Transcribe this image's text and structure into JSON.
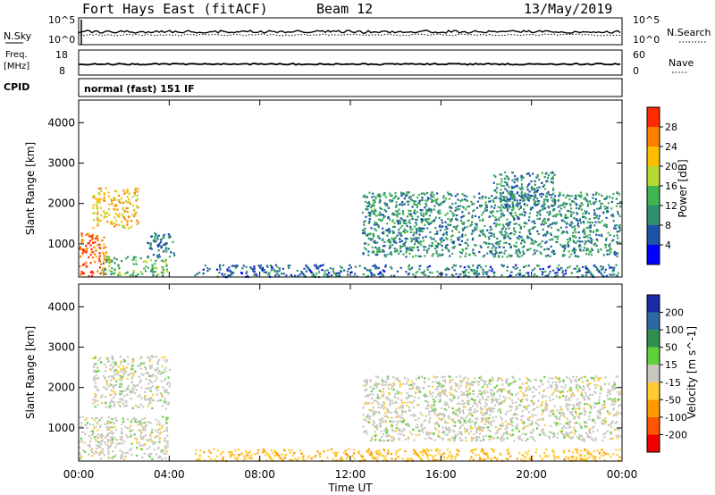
{
  "header": {
    "title": "Fort Hays East (fitACF)",
    "beam": "Beam 12",
    "date": "13/May/2019"
  },
  "top_panels": {
    "nsky_label": "N.Sky",
    "nsky_ticks": [
      "10^5",
      "10^0"
    ],
    "nsearch_label": "N.Search",
    "nsearch_ticks": [
      "10^5",
      "10^0"
    ],
    "freq_label_line1": "Freq.",
    "freq_label_line2": "[MHz]",
    "freq_ticks": [
      "18",
      "8"
    ],
    "nave_label": "Nave",
    "nave_ticks": [
      "60",
      "0"
    ],
    "cpid_label": "CPID",
    "cpid_text": "normal (fast) 151 IF"
  },
  "chart_data": [
    {
      "type": "heatmap",
      "name": "power",
      "ylabel": "Slant Range [km]",
      "yticks": [
        1000,
        2000,
        3000,
        4000
      ],
      "ylim": [
        180,
        4560
      ],
      "xlabel": "",
      "xlim": [
        0,
        24
      ],
      "colorbar_label": "Power [dB]",
      "colorbar_ticks": [
        4,
        8,
        12,
        16,
        20,
        24,
        28
      ],
      "colorbar_range": [
        0,
        32
      ],
      "colors": [
        "#0000ff",
        "#1d54a8",
        "#2f8f6e",
        "#3fb450",
        "#b8d832",
        "#ffbf00",
        "#ff7f00",
        "#ff2a00"
      ],
      "echo_regions": [
        {
          "x": [
            0.0,
            1.2
          ],
          "y": [
            200,
            1300
          ],
          "value": 28
        },
        {
          "x": [
            0.6,
            2.6
          ],
          "y": [
            1400,
            2400
          ],
          "value": 22
        },
        {
          "x": [
            1.0,
            3.9
          ],
          "y": [
            220,
            700
          ],
          "value": 14
        },
        {
          "x": [
            3.0,
            4.2
          ],
          "y": [
            700,
            1300
          ],
          "value": 9
        },
        {
          "x": [
            12.5,
            23.9
          ],
          "y": [
            700,
            2300
          ],
          "value": 10
        },
        {
          "x": [
            5.0,
            23.9
          ],
          "y": [
            200,
            500
          ],
          "value": 8
        },
        {
          "x": [
            18.3,
            21.0
          ],
          "y": [
            1900,
            2800
          ],
          "value": 9
        }
      ]
    },
    {
      "type": "heatmap",
      "name": "velocity",
      "ylabel": "Slant Range [km]",
      "yticks": [
        1000,
        2000,
        3000,
        4000
      ],
      "ylim": [
        180,
        4560
      ],
      "xlabel": "Time UT",
      "xticks": [
        "00:00",
        "04:00",
        "08:00",
        "12:00",
        "16:00",
        "20:00",
        "00:00"
      ],
      "xlim": [
        0,
        24
      ],
      "colorbar_label": "Velocity [m s^-1]",
      "colorbar_ticks": [
        200,
        100,
        50,
        15,
        -15,
        -50,
        -100,
        -200
      ],
      "colors": [
        "#1a2aa8",
        "#2a6aa0",
        "#2f8f4e",
        "#5fcf3a",
        "#c8c8c0",
        "#ffcc33",
        "#ff9900",
        "#ff5500",
        "#ee0000"
      ],
      "echo_regions": [
        {
          "x": [
            0.0,
            3.9
          ],
          "y": [
            250,
            1300
          ],
          "value": 0
        },
        {
          "x": [
            0.6,
            4.0
          ],
          "y": [
            1500,
            2800
          ],
          "value": 0
        },
        {
          "x": [
            12.5,
            23.9
          ],
          "y": [
            700,
            2300
          ],
          "value": 0
        },
        {
          "x": [
            5.0,
            23.9
          ],
          "y": [
            200,
            500
          ],
          "value": -40
        }
      ]
    }
  ]
}
